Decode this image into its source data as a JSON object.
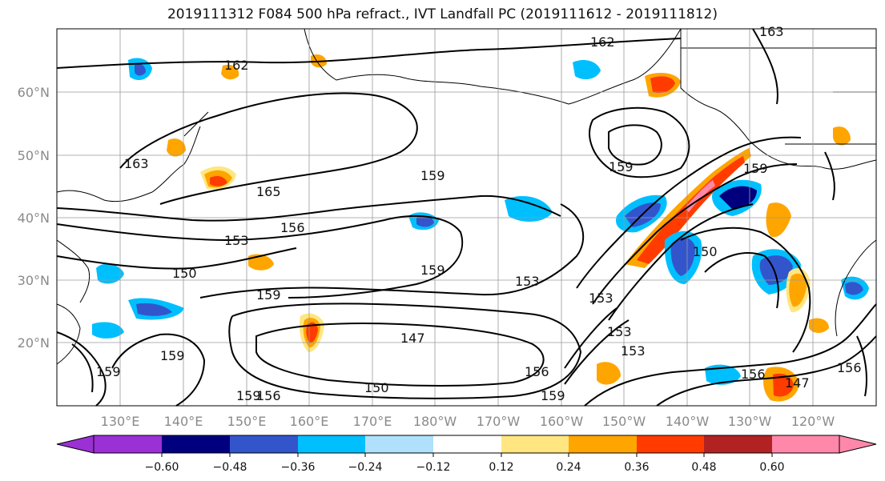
{
  "title": "2019111312 F084 500 hPa refract., IVT Landfall PC (2019111612 - 2019111812)",
  "map": {
    "lon_ticks": [
      "130°E",
      "140°E",
      "150°E",
      "160°E",
      "170°E",
      "180°W",
      "170°W",
      "160°W",
      "150°W",
      "140°W",
      "130°W",
      "120°W"
    ],
    "lat_ticks": [
      "20°N",
      "30°N",
      "40°N",
      "50°N",
      "60°N"
    ],
    "contour_labels": [
      "162",
      "162",
      "163",
      "165",
      "159",
      "159",
      "159",
      "156",
      "153",
      "159",
      "150",
      "153",
      "159",
      "153",
      "153",
      "150",
      "147",
      "156",
      "159",
      "159",
      "156",
      "147",
      "150",
      "156",
      "153",
      "159",
      "159",
      "163",
      "156"
    ]
  },
  "colorbar": {
    "ticks": [
      "−0.60",
      "−0.48",
      "−0.36",
      "−0.24",
      "−0.12",
      "0.12",
      "0.24",
      "0.36",
      "0.48",
      "0.60"
    ],
    "colors": [
      "#9b30d4",
      "#00007f",
      "#3355cc",
      "#00bfff",
      "#b0e0fc",
      "#ffffff",
      "#ffe680",
      "#ffa500",
      "#ff3b00",
      "#b22222",
      "#ff88aa"
    ]
  }
}
